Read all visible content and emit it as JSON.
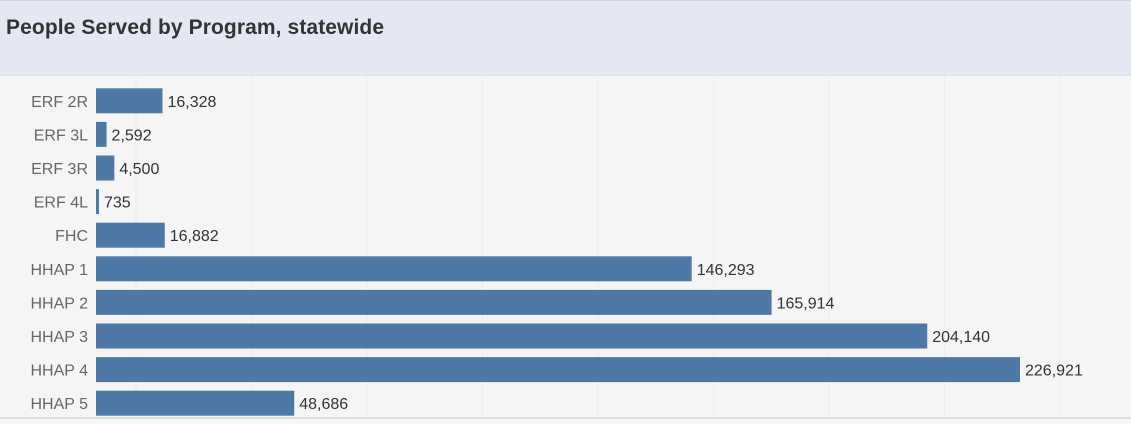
{
  "header": {
    "title": "People Served by Program, statewide"
  },
  "colors": {
    "bar": "#4e79a7",
    "header_bg": "#e3e8f2",
    "plot_bg": "#f5f5f5"
  },
  "chart_data": {
    "type": "bar",
    "orientation": "horizontal",
    "title": "People Served by Program, statewide",
    "xlabel": "",
    "ylabel": "",
    "xlim": [
      0,
      226921
    ],
    "categories": [
      "ERF 2R",
      "ERF 3L",
      "ERF 3R",
      "ERF 4L",
      "FHC",
      "HHAP 1",
      "HHAP 2",
      "HHAP 3",
      "HHAP 4",
      "HHAP 5"
    ],
    "values": [
      16328,
      2592,
      4500,
      735,
      16882,
      146293,
      165914,
      204140,
      226921,
      48686
    ],
    "value_labels": [
      "16,328",
      "2,592",
      "4,500",
      "735",
      "16,882",
      "146,293",
      "165,914",
      "204,140",
      "226,921",
      "48,686"
    ],
    "grid": true
  }
}
